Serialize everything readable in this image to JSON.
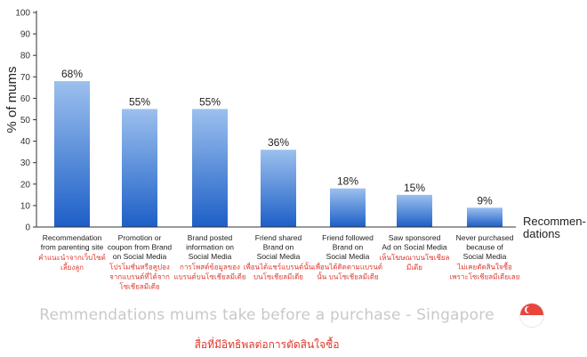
{
  "chart_data": {
    "type": "bar",
    "ylabel": "% of mums",
    "xlabel": "Recommen-\ndations",
    "ylim": [
      0,
      100
    ],
    "yticks": [
      0,
      10,
      20,
      30,
      40,
      50,
      60,
      70,
      80,
      90,
      100
    ],
    "grid": false,
    "colors": {
      "bar_top": "#9cc0ee",
      "bar_bottom": "#1d5fc7",
      "thai_text": "#e0362b"
    },
    "categories": [
      "Recommendation\nfrom parenting site",
      "Promotion or\ncoupon from Brand\non Social Media",
      "Brand posted\ninformation on\nSocial Media",
      "Friend shared\nBrand on\nSocial Media",
      "Friend followed\nBrand on\nSocial Media",
      "Saw sponsored\nAd on Social Media",
      "Never purchased\nbecause of\nSocial Media"
    ],
    "thai_labels": [
      "คำแนะนำจากเว็บไซต์\nเลี้ยงลูก",
      "โปรโมชั่นหรือคูปอง\nจากแบรนด์ที่ได้จาก\nโซเชียลมีเดีย",
      "การโพสต์ข้อมูลของ\nแบรนด์บนโซเชียลมีเดีย",
      "เพื่อนได้แชร์แบรนด์นั้น\nบนโซเชียลมีเดีย",
      "เพื่อนได้ติดตามแบรนด์\nนั้น บนโซเชียลมีเดีย",
      "เห็นโฆษณาบนโซเชียล\nมีเดีย",
      "ไม่เคยตัดสินใจซื้อ\nเพราะโซเชียลมีเดียเลย"
    ],
    "values": [
      68,
      55,
      55,
      36,
      18,
      15,
      9
    ],
    "value_labels": [
      "68%",
      "55%",
      "55%",
      "36%",
      "18%",
      "15%",
      "9%"
    ]
  },
  "caption": "Remmendations mums take before a purchase - Singapore",
  "subcaption": "สื่อที่มีอิทธิพลต่อการตัดสินใจซื้อ"
}
